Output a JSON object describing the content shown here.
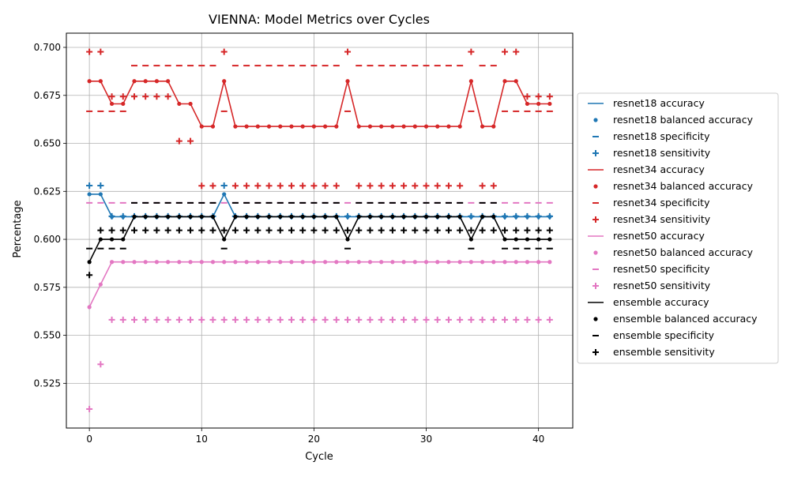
{
  "chart_data": {
    "type": "line",
    "title": "VIENNA: Model Metrics over Cycles",
    "xlabel": "Cycle",
    "ylabel": "Percentage",
    "xlim": [
      -2.05,
      43.05
    ],
    "ylim": [
      0.5017,
      0.7074
    ],
    "xticks": [
      0,
      10,
      20,
      30,
      40
    ],
    "xtick_labels": [
      "0",
      "10",
      "20",
      "30",
      "40"
    ],
    "yticks": [
      0.525,
      0.55,
      0.575,
      0.6,
      0.625,
      0.65,
      0.675,
      0.7
    ],
    "ytick_labels": [
      "0.525",
      "0.550",
      "0.575",
      "0.600",
      "0.625",
      "0.650",
      "0.675",
      "0.700"
    ],
    "grid": true,
    "legend_placement": "outside-right",
    "x": [
      0,
      1,
      2,
      3,
      4,
      5,
      6,
      7,
      8,
      9,
      10,
      11,
      12,
      13,
      14,
      15,
      16,
      17,
      18,
      19,
      20,
      21,
      22,
      23,
      24,
      25,
      26,
      27,
      28,
      29,
      30,
      31,
      32,
      33,
      34,
      35,
      36,
      37,
      38,
      39,
      40,
      41
    ],
    "models": [
      {
        "color": "#1f77b4",
        "accuracy": [
          0.6235,
          0.6235,
          0.6118,
          0.6118,
          0.6118,
          0.6118,
          0.6118,
          0.6118,
          0.6118,
          0.6118,
          0.6118,
          0.6118,
          0.6235,
          0.6118,
          0.6118,
          0.6118,
          0.6118,
          0.6118,
          0.6118,
          0.6118,
          0.6118,
          0.6118,
          0.6118,
          0.6118,
          0.6118,
          0.6118,
          0.6118,
          0.6118,
          0.6118,
          0.6118,
          0.6118,
          0.6118,
          0.6118,
          0.6118,
          0.6118,
          0.6118,
          0.6118,
          0.6118,
          0.6118,
          0.6118,
          0.6118,
          0.6118
        ],
        "balanced_accuracy": [
          0.6235,
          0.6235,
          0.6118,
          0.6118,
          0.6118,
          0.6118,
          0.6118,
          0.6118,
          0.6118,
          0.6118,
          0.6118,
          0.6118,
          0.6235,
          0.6118,
          0.6118,
          0.6118,
          0.6118,
          0.6118,
          0.6118,
          0.6118,
          0.6118,
          0.6118,
          0.6118,
          0.6118,
          0.6118,
          0.6118,
          0.6118,
          0.6118,
          0.6118,
          0.6118,
          0.6118,
          0.6118,
          0.6118,
          0.6118,
          0.6118,
          0.6118,
          0.6118,
          0.6118,
          0.6118,
          0.6118,
          0.6118,
          0.6118
        ],
        "specificity": [
          0.628,
          0.628,
          0.612,
          0.612,
          0.612,
          0.612,
          0.612,
          0.612,
          0.612,
          0.612,
          0.612,
          0.612,
          0.628,
          0.612,
          0.612,
          0.612,
          0.612,
          0.612,
          0.612,
          0.612,
          0.612,
          0.612,
          0.612,
          0.612,
          0.612,
          0.612,
          0.612,
          0.612,
          0.612,
          0.612,
          0.612,
          0.612,
          0.612,
          0.612,
          0.612,
          0.612,
          0.612,
          0.612,
          0.612,
          0.612,
          0.612,
          0.612
        ],
        "sensitivity": [
          0.628,
          0.628,
          0.612,
          0.612,
          0.612,
          0.612,
          0.612,
          0.612,
          0.612,
          0.612,
          0.612,
          0.612,
          0.628,
          0.612,
          0.612,
          0.612,
          0.612,
          0.612,
          0.612,
          0.612,
          0.612,
          0.612,
          0.612,
          0.612,
          0.612,
          0.612,
          0.612,
          0.612,
          0.612,
          0.612,
          0.612,
          0.612,
          0.612,
          0.612,
          0.612,
          0.612,
          0.612,
          0.612,
          0.612,
          0.612,
          0.612,
          0.612
        ]
      },
      {
        "color": "#d62728",
        "accuracy": [
          0.6824,
          0.6824,
          0.6706,
          0.6706,
          0.6824,
          0.6824,
          0.6824,
          0.6824,
          0.6706,
          0.6706,
          0.6588,
          0.6588,
          0.6824,
          0.6588,
          0.6588,
          0.6588,
          0.6588,
          0.6588,
          0.6588,
          0.6588,
          0.6588,
          0.6588,
          0.6588,
          0.6824,
          0.6588,
          0.6588,
          0.6588,
          0.6588,
          0.6588,
          0.6588,
          0.6588,
          0.6588,
          0.6588,
          0.6588,
          0.6824,
          0.6588,
          0.6588,
          0.6824,
          0.6824,
          0.6706,
          0.6706,
          0.6706
        ],
        "balanced_accuracy": [
          0.6824,
          0.6824,
          0.6706,
          0.6706,
          0.6824,
          0.6824,
          0.6824,
          0.6824,
          0.6706,
          0.6706,
          0.6588,
          0.6588,
          0.6824,
          0.6588,
          0.6588,
          0.6588,
          0.6588,
          0.6588,
          0.6588,
          0.6588,
          0.6588,
          0.6588,
          0.6588,
          0.6824,
          0.6588,
          0.6588,
          0.6588,
          0.6588,
          0.6588,
          0.6588,
          0.6588,
          0.6588,
          0.6588,
          0.6588,
          0.6824,
          0.6588,
          0.6588,
          0.6824,
          0.6824,
          0.6706,
          0.6706,
          0.6706
        ],
        "specificity": [
          0.6667,
          0.6667,
          0.6667,
          0.6667,
          0.6905,
          0.6905,
          0.6905,
          0.6905,
          0.6905,
          0.6905,
          0.6905,
          0.6905,
          0.6667,
          0.6905,
          0.6905,
          0.6905,
          0.6905,
          0.6905,
          0.6905,
          0.6905,
          0.6905,
          0.6905,
          0.6905,
          0.6667,
          0.6905,
          0.6905,
          0.6905,
          0.6905,
          0.6905,
          0.6905,
          0.6905,
          0.6905,
          0.6905,
          0.6905,
          0.6667,
          0.6905,
          0.6905,
          0.6667,
          0.6667,
          0.6667,
          0.6667,
          0.6667
        ],
        "sensitivity": [
          0.6977,
          0.6977,
          0.6744,
          0.6744,
          0.6744,
          0.6744,
          0.6744,
          0.6744,
          0.6512,
          0.6512,
          0.6279,
          0.6279,
          0.6977,
          0.6279,
          0.6279,
          0.6279,
          0.6279,
          0.6279,
          0.6279,
          0.6279,
          0.6279,
          0.6279,
          0.6279,
          0.6977,
          0.6279,
          0.6279,
          0.6279,
          0.6279,
          0.6279,
          0.6279,
          0.6279,
          0.6279,
          0.6279,
          0.6279,
          0.6977,
          0.6279,
          0.6279,
          0.6977,
          0.6977,
          0.6744,
          0.6744,
          0.6744
        ]
      },
      {
        "color": "#e377c2",
        "accuracy": [
          0.5647,
          0.5765,
          0.5882,
          0.5882,
          0.5882,
          0.5882,
          0.5882,
          0.5882,
          0.5882,
          0.5882,
          0.5882,
          0.5882,
          0.5882,
          0.5882,
          0.5882,
          0.5882,
          0.5882,
          0.5882,
          0.5882,
          0.5882,
          0.5882,
          0.5882,
          0.5882,
          0.5882,
          0.5882,
          0.5882,
          0.5882,
          0.5882,
          0.5882,
          0.5882,
          0.5882,
          0.5882,
          0.5882,
          0.5882,
          0.5882,
          0.5882,
          0.5882,
          0.5882,
          0.5882,
          0.5882,
          0.5882,
          0.5882
        ],
        "balanced_accuracy": [
          0.5647,
          0.5765,
          0.5882,
          0.5882,
          0.5882,
          0.5882,
          0.5882,
          0.5882,
          0.5882,
          0.5882,
          0.5882,
          0.5882,
          0.5882,
          0.5882,
          0.5882,
          0.5882,
          0.5882,
          0.5882,
          0.5882,
          0.5882,
          0.5882,
          0.5882,
          0.5882,
          0.5882,
          0.5882,
          0.5882,
          0.5882,
          0.5882,
          0.5882,
          0.5882,
          0.5882,
          0.5882,
          0.5882,
          0.5882,
          0.5882,
          0.5882,
          0.5882,
          0.5882,
          0.5882,
          0.5882,
          0.5882,
          0.5882
        ],
        "specificity": [
          0.619,
          0.619,
          0.619,
          0.619,
          0.619,
          0.619,
          0.619,
          0.619,
          0.619,
          0.619,
          0.619,
          0.619,
          0.619,
          0.619,
          0.619,
          0.619,
          0.619,
          0.619,
          0.619,
          0.619,
          0.619,
          0.619,
          0.619,
          0.619,
          0.619,
          0.619,
          0.619,
          0.619,
          0.619,
          0.619,
          0.619,
          0.619,
          0.619,
          0.619,
          0.619,
          0.619,
          0.619,
          0.619,
          0.619,
          0.619,
          0.619,
          0.619
        ],
        "sensitivity": [
          0.5116,
          0.5349,
          0.5581,
          0.5581,
          0.5581,
          0.5581,
          0.5581,
          0.5581,
          0.5581,
          0.5581,
          0.5581,
          0.5581,
          0.5581,
          0.5581,
          0.5581,
          0.5581,
          0.5581,
          0.5581,
          0.5581,
          0.5581,
          0.5581,
          0.5581,
          0.5581,
          0.5581,
          0.5581,
          0.5581,
          0.5581,
          0.5581,
          0.5581,
          0.5581,
          0.5581,
          0.5581,
          0.5581,
          0.5581,
          0.5581,
          0.5581,
          0.5581,
          0.5581,
          0.5581,
          0.5581,
          0.5581,
          0.5581
        ]
      },
      {
        "color": "#000000",
        "accuracy": [
          0.5882,
          0.6,
          0.6,
          0.6,
          0.6118,
          0.6118,
          0.6118,
          0.6118,
          0.6118,
          0.6118,
          0.6118,
          0.6118,
          0.6,
          0.6118,
          0.6118,
          0.6118,
          0.6118,
          0.6118,
          0.6118,
          0.6118,
          0.6118,
          0.6118,
          0.6118,
          0.6,
          0.6118,
          0.6118,
          0.6118,
          0.6118,
          0.6118,
          0.6118,
          0.6118,
          0.6118,
          0.6118,
          0.6118,
          0.6,
          0.6118,
          0.6118,
          0.6,
          0.6,
          0.6,
          0.6,
          0.6
        ],
        "balanced_accuracy": [
          0.5882,
          0.6,
          0.6,
          0.6,
          0.6118,
          0.6118,
          0.6118,
          0.6118,
          0.6118,
          0.6118,
          0.6118,
          0.6118,
          0.6,
          0.6118,
          0.6118,
          0.6118,
          0.6118,
          0.6118,
          0.6118,
          0.6118,
          0.6118,
          0.6118,
          0.6118,
          0.6,
          0.6118,
          0.6118,
          0.6118,
          0.6118,
          0.6118,
          0.6118,
          0.6118,
          0.6118,
          0.6118,
          0.6118,
          0.6,
          0.6118,
          0.6118,
          0.6,
          0.6,
          0.6,
          0.6,
          0.6
        ],
        "specificity": [
          0.5952,
          0.5952,
          0.5952,
          0.5952,
          0.619,
          0.619,
          0.619,
          0.619,
          0.619,
          0.619,
          0.619,
          0.619,
          0.5952,
          0.619,
          0.619,
          0.619,
          0.619,
          0.619,
          0.619,
          0.619,
          0.619,
          0.619,
          0.619,
          0.5952,
          0.619,
          0.619,
          0.619,
          0.619,
          0.619,
          0.619,
          0.619,
          0.619,
          0.619,
          0.619,
          0.5952,
          0.619,
          0.619,
          0.5952,
          0.5952,
          0.5952,
          0.5952,
          0.5952
        ],
        "sensitivity": [
          0.5814,
          0.6047,
          0.6047,
          0.6047,
          0.6047,
          0.6047,
          0.6047,
          0.6047,
          0.6047,
          0.6047,
          0.6047,
          0.6047,
          0.6047,
          0.6047,
          0.6047,
          0.6047,
          0.6047,
          0.6047,
          0.6047,
          0.6047,
          0.6047,
          0.6047,
          0.6047,
          0.6047,
          0.6047,
          0.6047,
          0.6047,
          0.6047,
          0.6047,
          0.6047,
          0.6047,
          0.6047,
          0.6047,
          0.6047,
          0.6047,
          0.6047,
          0.6047,
          0.6047,
          0.6047,
          0.6047,
          0.6047,
          0.6047
        ]
      }
    ],
    "legend": [
      {
        "label": "resnet18 accuracy",
        "color": "#1f77b4",
        "marker": "line"
      },
      {
        "label": "resnet18 balanced accuracy",
        "color": "#1f77b4",
        "marker": "dot"
      },
      {
        "label": "resnet18 specificity",
        "color": "#1f77b4",
        "marker": "dash"
      },
      {
        "label": "resnet18 sensitivity",
        "color": "#1f77b4",
        "marker": "plus"
      },
      {
        "label": "resnet34 accuracy",
        "color": "#d62728",
        "marker": "line"
      },
      {
        "label": "resnet34 balanced accuracy",
        "color": "#d62728",
        "marker": "dot"
      },
      {
        "label": "resnet34 specificity",
        "color": "#d62728",
        "marker": "dash"
      },
      {
        "label": "resnet34 sensitivity",
        "color": "#d62728",
        "marker": "plus"
      },
      {
        "label": "resnet50 accuracy",
        "color": "#e377c2",
        "marker": "line"
      },
      {
        "label": "resnet50 balanced accuracy",
        "color": "#e377c2",
        "marker": "dot"
      },
      {
        "label": "resnet50 specificity",
        "color": "#e377c2",
        "marker": "dash"
      },
      {
        "label": "resnet50 sensitivity",
        "color": "#e377c2",
        "marker": "plus"
      },
      {
        "label": "ensemble accuracy",
        "color": "#000000",
        "marker": "line"
      },
      {
        "label": "ensemble balanced accuracy",
        "color": "#000000",
        "marker": "dot"
      },
      {
        "label": "ensemble specificity",
        "color": "#000000",
        "marker": "dash"
      },
      {
        "label": "ensemble sensitivity",
        "color": "#000000",
        "marker": "plus"
      }
    ]
  }
}
